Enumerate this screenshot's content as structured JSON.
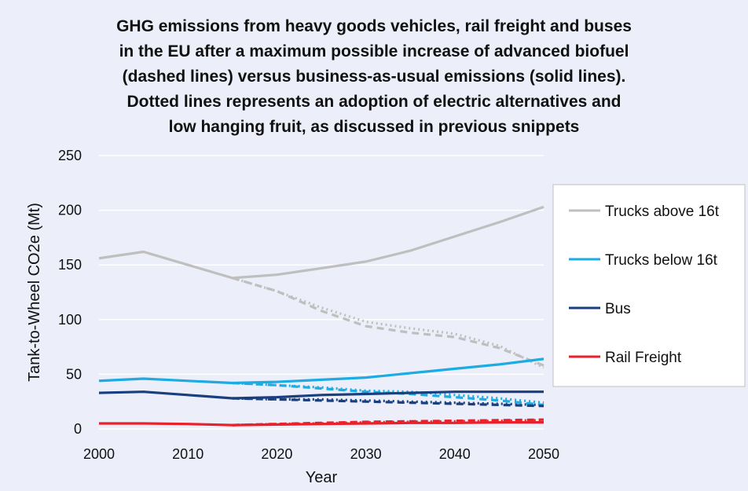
{
  "chart_data": {
    "type": "line",
    "title_lines": [
      "GHG emissions from heavy goods vehicles, rail freight and buses",
      "in the EU after a maximum possible increase of advanced biofuel",
      "(dashed lines) versus business-as-usual emissions (solid lines).",
      "Dotted lines represents an adoption of electric alternatives and",
      "low hanging fruit, as discussed in previous snippets"
    ],
    "xlabel": "Year",
    "ylabel": "Tank-to-Wheel CO2e (Mt)",
    "xlim": [
      2000,
      2050
    ],
    "ylim": [
      0,
      250
    ],
    "x_ticks": [
      2000,
      2010,
      2020,
      2030,
      2040,
      2050
    ],
    "y_ticks": [
      0,
      50,
      100,
      150,
      200,
      250
    ],
    "grid": "horizontal",
    "legend_position": "right",
    "x": [
      2000,
      2005,
      2010,
      2015,
      2020,
      2025,
      2030,
      2035,
      2040,
      2045,
      2050
    ],
    "series": [
      {
        "name": "Trucks above 16t",
        "color": "#bfbfbf",
        "solid": [
          156,
          162,
          150,
          138,
          141,
          147,
          153,
          163,
          176,
          189,
          203
        ],
        "dashed": [
          null,
          null,
          null,
          138,
          126,
          108,
          94,
          88,
          84,
          74,
          58
        ],
        "dotted": [
          null,
          null,
          null,
          138,
          126,
          111,
          98,
          92,
          87,
          76,
          56
        ]
      },
      {
        "name": "Trucks below 16t",
        "color": "#1cabe2",
        "solid": [
          44,
          46,
          44,
          42,
          43,
          45,
          47,
          51,
          55,
          59,
          64
        ],
        "dashed": [
          null,
          null,
          null,
          42,
          40,
          37,
          34,
          32,
          29,
          26,
          22
        ],
        "dotted": [
          null,
          null,
          null,
          42,
          40,
          38,
          35,
          34,
          31,
          28,
          24
        ]
      },
      {
        "name": "Bus",
        "color": "#1a3f7f",
        "solid": [
          33,
          34,
          31,
          28,
          29,
          31,
          32,
          33,
          34,
          34,
          34
        ],
        "dashed": [
          null,
          null,
          null,
          28,
          27,
          26,
          25,
          24,
          23,
          22,
          21
        ],
        "dotted": [
          null,
          null,
          null,
          28,
          27,
          27,
          26,
          25,
          24,
          23,
          22
        ]
      },
      {
        "name": "Rail Freight",
        "color": "#e8212b",
        "solid": [
          5,
          5,
          4.5,
          3.5,
          4,
          4.5,
          5,
          5.5,
          5.5,
          6,
          6
        ],
        "dashed": [
          null,
          null,
          null,
          3.5,
          4.5,
          5.5,
          6.5,
          7,
          7.5,
          8,
          8.5
        ],
        "dotted": [
          null,
          null,
          null,
          3.5,
          4.5,
          5,
          6,
          6.5,
          7,
          7.5,
          8
        ]
      }
    ]
  }
}
